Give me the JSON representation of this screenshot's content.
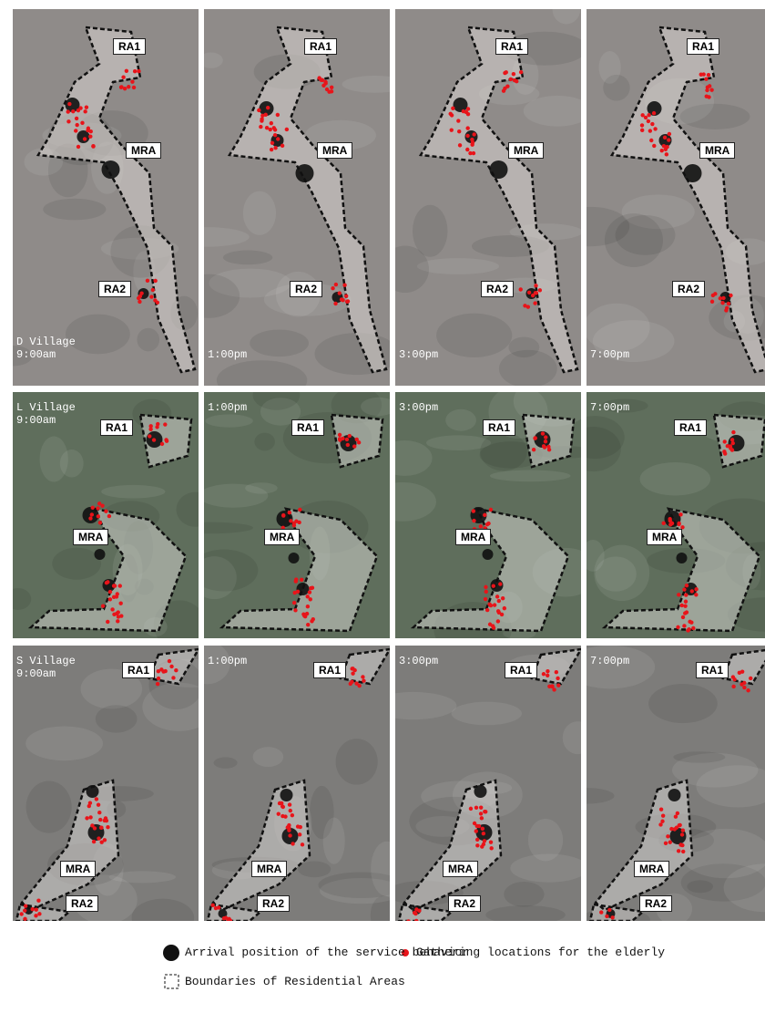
{
  "rows": [
    {
      "village": "D Village",
      "panels": [
        {
          "time": "9:00am",
          "labels": [
            "RA1",
            "MRA",
            "RA2"
          ]
        },
        {
          "time": "1:00pm",
          "labels": [
            "RA1",
            "MRA",
            "RA2"
          ]
        },
        {
          "time": "3:00pm",
          "labels": [
            "RA1",
            "MRA",
            "RA2"
          ]
        },
        {
          "time": "7:00pm",
          "labels": [
            "RA1",
            "MRA",
            "RA2"
          ]
        }
      ]
    },
    {
      "village": "L Village",
      "panels": [
        {
          "time": "9:00am",
          "labels": [
            "RA1",
            "MRA"
          ]
        },
        {
          "time": "1:00pm",
          "labels": [
            "RA1",
            "MRA"
          ]
        },
        {
          "time": "3:00pm",
          "labels": [
            "RA1",
            "MRA"
          ]
        },
        {
          "time": "7:00pm",
          "labels": [
            "RA1",
            "MRA"
          ]
        }
      ]
    },
    {
      "village": "S Village",
      "panels": [
        {
          "time": "9:00am",
          "labels": [
            "RA1",
            "MRA",
            "RA2"
          ]
        },
        {
          "time": "1:00pm",
          "labels": [
            "RA1",
            "MRA",
            "RA2"
          ]
        },
        {
          "time": "3:00pm",
          "labels": [
            "RA1",
            "MRA",
            "RA2"
          ]
        },
        {
          "time": "7:00pm",
          "labels": [
            "RA1",
            "MRA",
            "RA2"
          ]
        }
      ]
    }
  ],
  "legend": {
    "arrival": "Arrival position of the service behavior",
    "gathering": "Gathering locations for the elderly",
    "boundaries": "Boundaries of Residential Areas"
  }
}
